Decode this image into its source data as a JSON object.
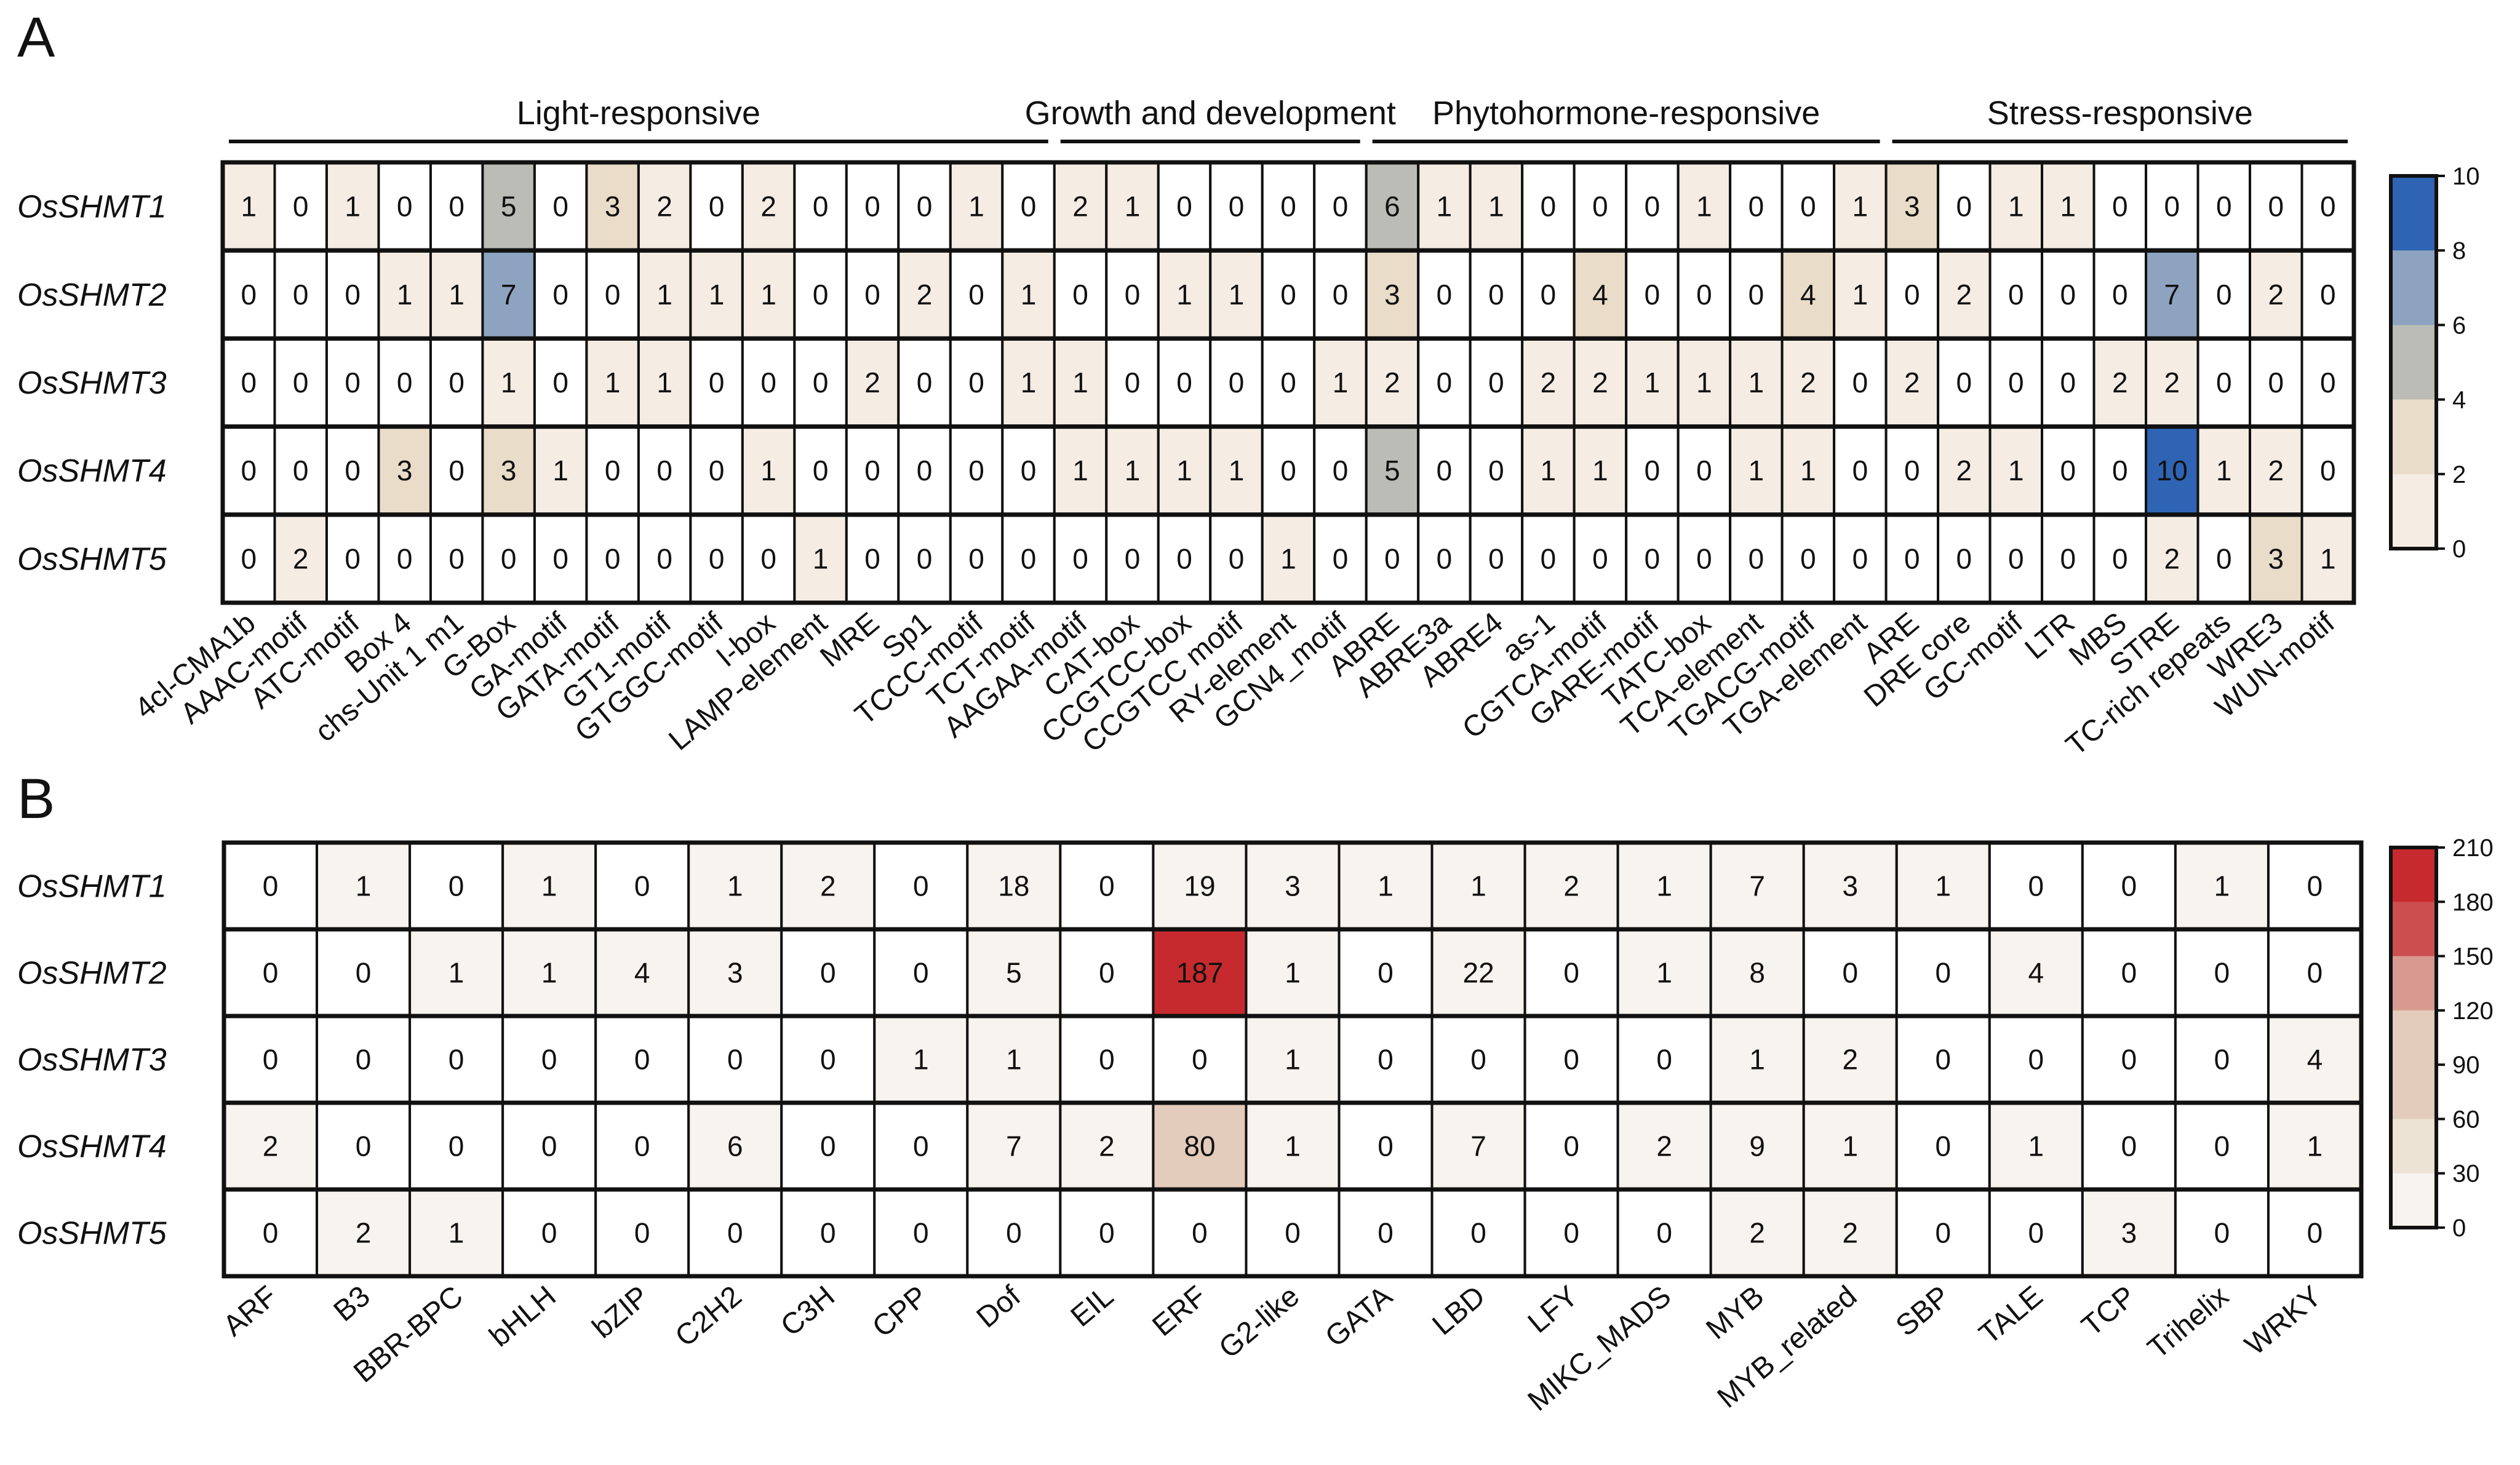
{
  "panels": {
    "a": "A",
    "b": "B"
  },
  "chart_data": [
    {
      "type": "heatmap",
      "panel": "A",
      "rows": [
        "OsSHMT1",
        "OsSHMT2",
        "OsSHMT3",
        "OsSHMT4",
        "OsSHMT5"
      ],
      "columns": [
        "4cl-CMA1b",
        "AAAC-motif",
        "ATC-motif",
        "Box 4",
        "chs-Unit 1 m1",
        "G-Box",
        "GA-motif",
        "GATA-motif",
        "GT1-motif",
        "GTGGC-motif",
        "I-box",
        "LAMP-element",
        "MRE",
        "Sp1",
        "TCCC-motif",
        "TCT-motif",
        "AAGAA-motif",
        "CAT-box",
        "CCGTCC-box",
        "CCGTCC motif",
        "RY-element",
        "GCN4_motif",
        "ABRE",
        "ABRE3a",
        "ABRE4",
        "as-1",
        "CGTCA-motif",
        "GARE-motif",
        "TATC-box",
        "TCA-element",
        "TGACG-motif",
        "TGA-element",
        "ARE",
        "DRE core",
        "GC-motif",
        "LTR",
        "MBS",
        "STRE",
        "TC-rich repeats",
        "WRE3",
        "WUN-motif"
      ],
      "groups": [
        {
          "label": "Light-responsive",
          "start": 0,
          "end": 15
        },
        {
          "label": "Growth and development",
          "start": 16,
          "end": 21
        },
        {
          "label": "Phytohormone-responsive",
          "start": 22,
          "end": 31
        },
        {
          "label": "Stress-responsive",
          "start": 32,
          "end": 40
        }
      ],
      "values": [
        [
          1,
          0,
          1,
          0,
          0,
          5,
          0,
          3,
          2,
          0,
          2,
          0,
          0,
          0,
          1,
          0,
          2,
          1,
          0,
          0,
          0,
          0,
          6,
          1,
          1,
          0,
          0,
          0,
          1,
          0,
          0,
          1,
          3,
          0,
          1,
          1,
          0,
          0,
          0,
          0,
          0
        ],
        [
          0,
          0,
          0,
          1,
          1,
          7,
          0,
          0,
          1,
          1,
          1,
          0,
          0,
          2,
          0,
          1,
          0,
          0,
          1,
          1,
          0,
          0,
          3,
          0,
          0,
          0,
          4,
          0,
          0,
          0,
          4,
          1,
          0,
          2,
          0,
          0,
          0,
          7,
          0,
          2,
          0
        ],
        [
          0,
          0,
          0,
          0,
          0,
          1,
          0,
          1,
          1,
          0,
          0,
          0,
          2,
          0,
          0,
          1,
          1,
          0,
          0,
          0,
          0,
          1,
          2,
          0,
          0,
          2,
          2,
          1,
          1,
          1,
          2,
          0,
          2,
          0,
          0,
          0,
          2,
          2,
          0,
          0,
          0
        ],
        [
          0,
          0,
          0,
          3,
          0,
          3,
          1,
          0,
          0,
          0,
          1,
          0,
          0,
          0,
          0,
          0,
          1,
          1,
          1,
          1,
          0,
          0,
          5,
          0,
          0,
          1,
          1,
          0,
          0,
          1,
          1,
          0,
          0,
          2,
          1,
          0,
          0,
          10,
          1,
          2,
          0
        ],
        [
          0,
          2,
          0,
          0,
          0,
          0,
          0,
          0,
          0,
          0,
          0,
          1,
          0,
          0,
          0,
          0,
          0,
          0,
          0,
          0,
          1,
          0,
          0,
          0,
          0,
          0,
          0,
          0,
          0,
          0,
          0,
          0,
          0,
          0,
          0,
          0,
          0,
          2,
          0,
          3,
          1
        ]
      ],
      "colorbar": {
        "min": 0,
        "max": 10,
        "ticks": [
          "10",
          "8",
          "6",
          "4",
          "2",
          "0"
        ]
      },
      "colors": [
        "#ffffff",
        "#f5ece4",
        "#e9dcc9",
        "#bcbcb6",
        "#8da3c0",
        "#2e64b3"
      ]
    },
    {
      "type": "heatmap",
      "panel": "B",
      "rows": [
        "OsSHMT1",
        "OsSHMT2",
        "OsSHMT3",
        "OsSHMT4",
        "OsSHMT5"
      ],
      "columns": [
        "ARF",
        "B3",
        "BBR-BPC",
        "bHLH",
        "bZIP",
        "C2H2",
        "C3H",
        "CPP",
        "Dof",
        "EIL",
        "ERF",
        "G2-like",
        "GATA",
        "LBD",
        "LFY",
        "MIKC_MADS",
        "MYB",
        "MYB_related",
        "SBP",
        "TALE",
        "TCP",
        "Trihelix",
        "WRKY"
      ],
      "values": [
        [
          0,
          1,
          0,
          1,
          0,
          1,
          2,
          0,
          18,
          0,
          19,
          3,
          1,
          1,
          2,
          1,
          7,
          3,
          1,
          0,
          0,
          1,
          0
        ],
        [
          0,
          0,
          1,
          1,
          4,
          3,
          0,
          0,
          5,
          0,
          187,
          1,
          0,
          22,
          0,
          1,
          8,
          0,
          0,
          4,
          0,
          0,
          0
        ],
        [
          0,
          0,
          0,
          0,
          0,
          0,
          0,
          1,
          1,
          0,
          0,
          1,
          0,
          0,
          0,
          0,
          1,
          2,
          0,
          0,
          0,
          0,
          4
        ],
        [
          2,
          0,
          0,
          0,
          0,
          6,
          0,
          0,
          7,
          2,
          80,
          1,
          0,
          7,
          0,
          2,
          9,
          1,
          0,
          1,
          0,
          0,
          1
        ],
        [
          0,
          2,
          1,
          0,
          0,
          0,
          0,
          0,
          0,
          0,
          0,
          0,
          0,
          0,
          0,
          0,
          2,
          2,
          0,
          0,
          3,
          0,
          0
        ]
      ],
      "colorbar": {
        "min": 0,
        "max": 210,
        "ticks": [
          "210",
          "180",
          "150",
          "120",
          "90",
          "60",
          "30",
          "0"
        ]
      },
      "colors": [
        "#ffffff",
        "#f7f3ee",
        "#ede3d4",
        "#e3ccbb",
        "#d89a90",
        "#cc4e4e",
        "#c72a2e"
      ]
    }
  ]
}
